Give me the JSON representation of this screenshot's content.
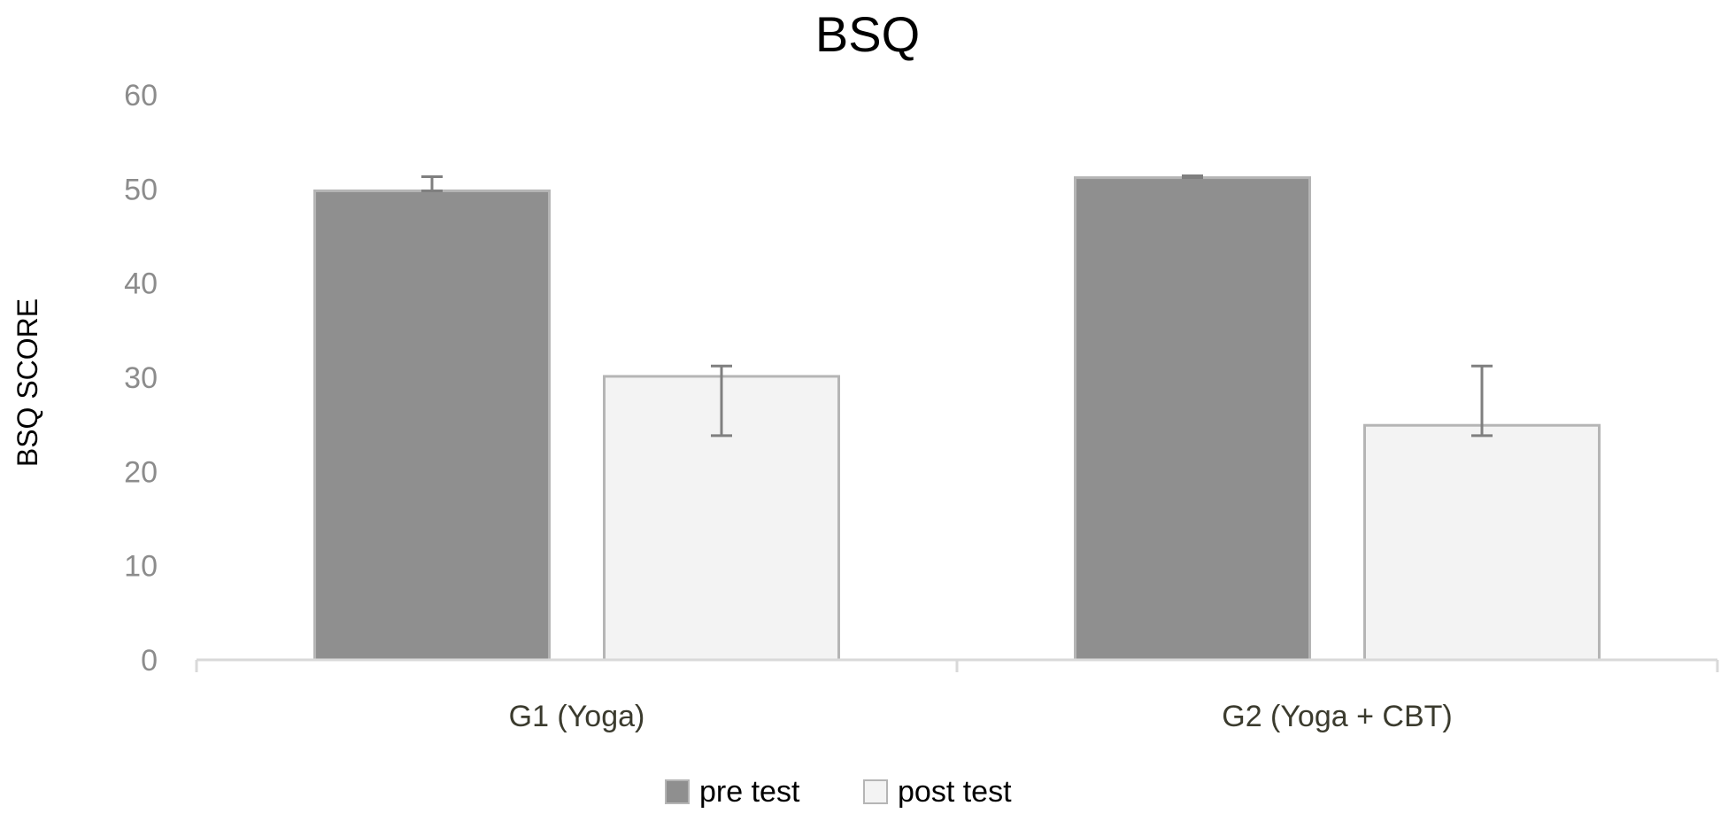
{
  "chart_data": {
    "type": "bar",
    "title": "BSQ",
    "xlabel": "",
    "ylabel": "BSQ  SCORE",
    "ylim": [
      0,
      60
    ],
    "yticks": [
      0,
      10,
      20,
      30,
      40,
      50,
      60
    ],
    "categories": [
      "G1 (Yoga)",
      "G2 (Yoga + CBT)"
    ],
    "series": [
      {
        "name": "pre test",
        "values": [
          49.8,
          51.2
        ],
        "error_upper": [
          51.3,
          51.4
        ],
        "error_lower": [
          49.8,
          51.2
        ],
        "fill": "#8f8f8f",
        "stroke": "#b5b5b5"
      },
      {
        "name": "post test",
        "values": [
          30.1,
          24.9
        ],
        "error_upper": [
          31.2,
          31.2
        ],
        "error_lower": [
          23.8,
          23.8
        ],
        "fill": "#f3f3f3",
        "stroke": "#b5b5b5"
      }
    ],
    "grid": false,
    "legend": "bottom-center",
    "colors": {
      "axis": "#d9d9d9",
      "error_bar": "#7f7f7f"
    }
  }
}
